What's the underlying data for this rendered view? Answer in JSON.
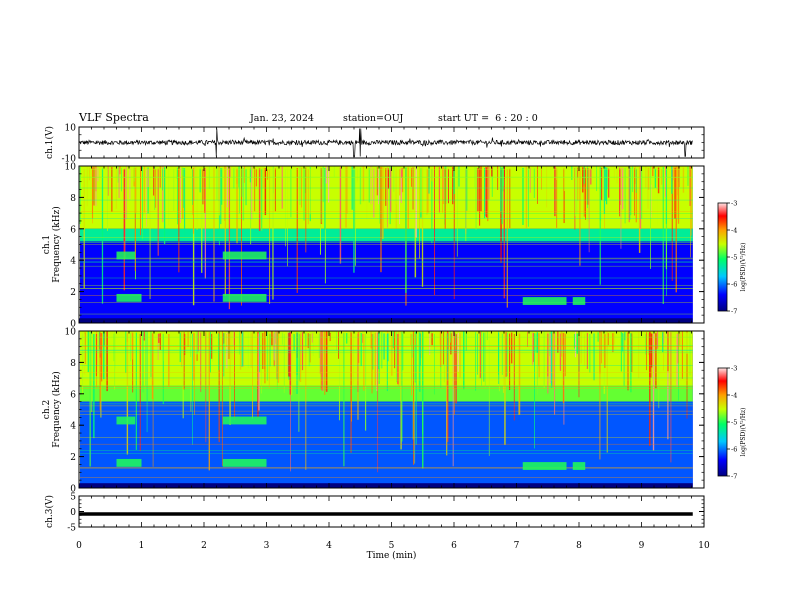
{
  "header": {
    "title": "VLF Spectra",
    "date": "Jan. 23, 2024",
    "station": "station=OUJ",
    "start": "start UT =  6 : 20 : 0"
  },
  "chart_data": [
    {
      "type": "line",
      "panel": "ch1-waveform",
      "ylabel": "ch.1(V)",
      "ylim": [
        -10,
        10
      ],
      "yticks": [
        "10",
        "-10"
      ],
      "series": [
        {
          "baseline": 0,
          "typical_amplitude": 1.5,
          "spike_times_min": [
            2.2,
            4.4,
            4.5,
            9.7
          ]
        }
      ]
    },
    {
      "type": "heatmap",
      "panel": "ch1-spectrogram",
      "ylabel": "ch.1\nFrequency (kHz)",
      "ylim": [
        0,
        10
      ],
      "yticks": [
        "0",
        "2",
        "4",
        "6",
        "8",
        "10"
      ],
      "colorbar": {
        "label": "log(PSD)(V²/Hz)",
        "range": [
          -7,
          -3
        ],
        "ticks": [
          "-3",
          "-4",
          "-5",
          "-6",
          "-7"
        ]
      },
      "bands": [
        {
          "freq_khz": [
            6,
            10
          ],
          "level": -4.5
        },
        {
          "freq_khz": [
            5.2,
            6
          ],
          "level": -5.3
        },
        {
          "freq_khz": [
            0.3,
            5.2
          ],
          "level": -6.4
        }
      ]
    },
    {
      "type": "heatmap",
      "panel": "ch2-spectrogram",
      "ylabel": "ch.2\nFrequency (kHz)",
      "ylim": [
        0,
        10
      ],
      "yticks": [
        "0",
        "2",
        "4",
        "6",
        "8",
        "10"
      ],
      "colorbar": {
        "label": "log(PSD)(V²/Hz)",
        "range": [
          -7,
          -3
        ],
        "ticks": [
          "-3",
          "-4",
          "-5",
          "-6",
          "-7"
        ]
      },
      "bands": [
        {
          "freq_khz": [
            6.5,
            10
          ],
          "level": -4.5
        },
        {
          "freq_khz": [
            5.5,
            6.5
          ],
          "level": -4.8
        },
        {
          "freq_khz": [
            0.3,
            5.5
          ],
          "level": -6.1
        }
      ]
    },
    {
      "type": "line",
      "panel": "ch3-waveform",
      "ylabel": "ch.3(V)",
      "ylim": [
        -5,
        5
      ],
      "yticks": [
        "5",
        "0",
        "-5"
      ],
      "series": [
        {
          "constant_value": -0.8
        }
      ]
    }
  ],
  "xaxis": {
    "label": "Time (min)",
    "range": [
      0,
      10
    ],
    "ticks": [
      "0",
      "1",
      "2",
      "3",
      "4",
      "5",
      "6",
      "7",
      "8",
      "9",
      "10"
    ],
    "data_end_min": 9.82
  },
  "colors": {
    "axis": "#000000",
    "background": "#ffffff"
  }
}
